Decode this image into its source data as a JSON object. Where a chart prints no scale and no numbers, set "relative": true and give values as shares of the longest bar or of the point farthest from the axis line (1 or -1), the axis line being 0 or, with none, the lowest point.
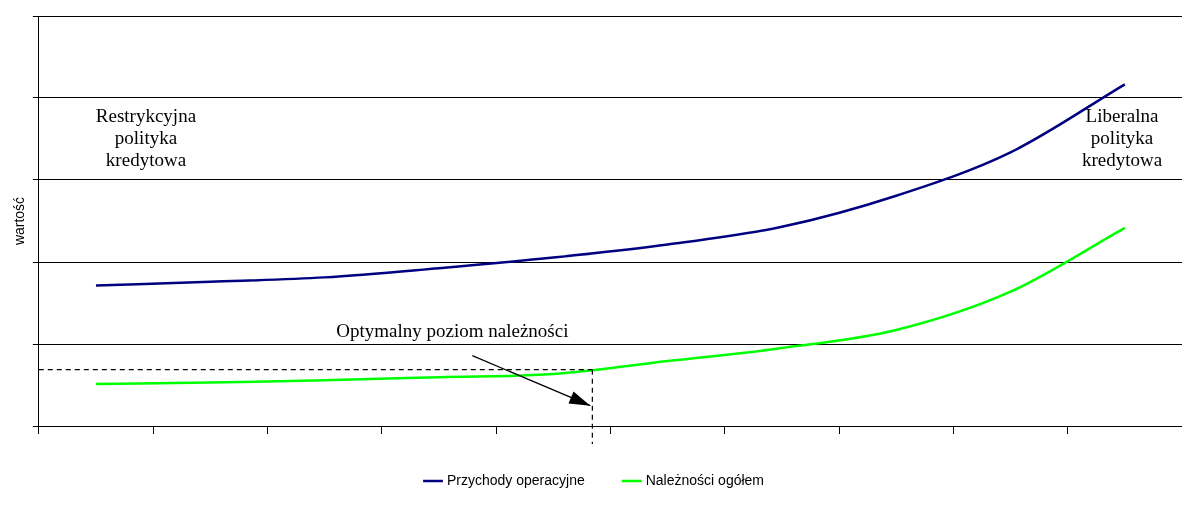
{
  "chart_data": {
    "type": "line",
    "relative": true,
    "ylabel": "wartość",
    "categories": [
      null,
      null,
      null,
      null,
      null,
      null,
      null,
      null,
      null,
      null
    ],
    "series": [
      {
        "name": "Przychody operacyjne",
        "color": "#000080",
        "values": [
          0.411,
          0.422,
          0.435,
          0.462,
          0.493,
          0.531,
          0.583,
          0.674,
          0.801,
          1.0
        ]
      },
      {
        "name": "Należności ogółem",
        "color": "#00ff00",
        "values": [
          0.123,
          0.127,
          0.134,
          0.143,
          0.152,
          0.19,
          0.228,
          0.281,
          0.393,
          0.58
        ]
      }
    ],
    "annotations": [
      "Restrykcyjna polityka kredytowa",
      "Liberalna polityka kredytowa",
      "Optymalny poziom należności"
    ],
    "ref_lines": [
      {
        "axis": "y",
        "value": 0.165,
        "line_style": "dashed",
        "color": "#000000"
      }
    ],
    "grid": "y",
    "legend": "bottom",
    "marker": "none",
    "line_style": "solid"
  }
}
